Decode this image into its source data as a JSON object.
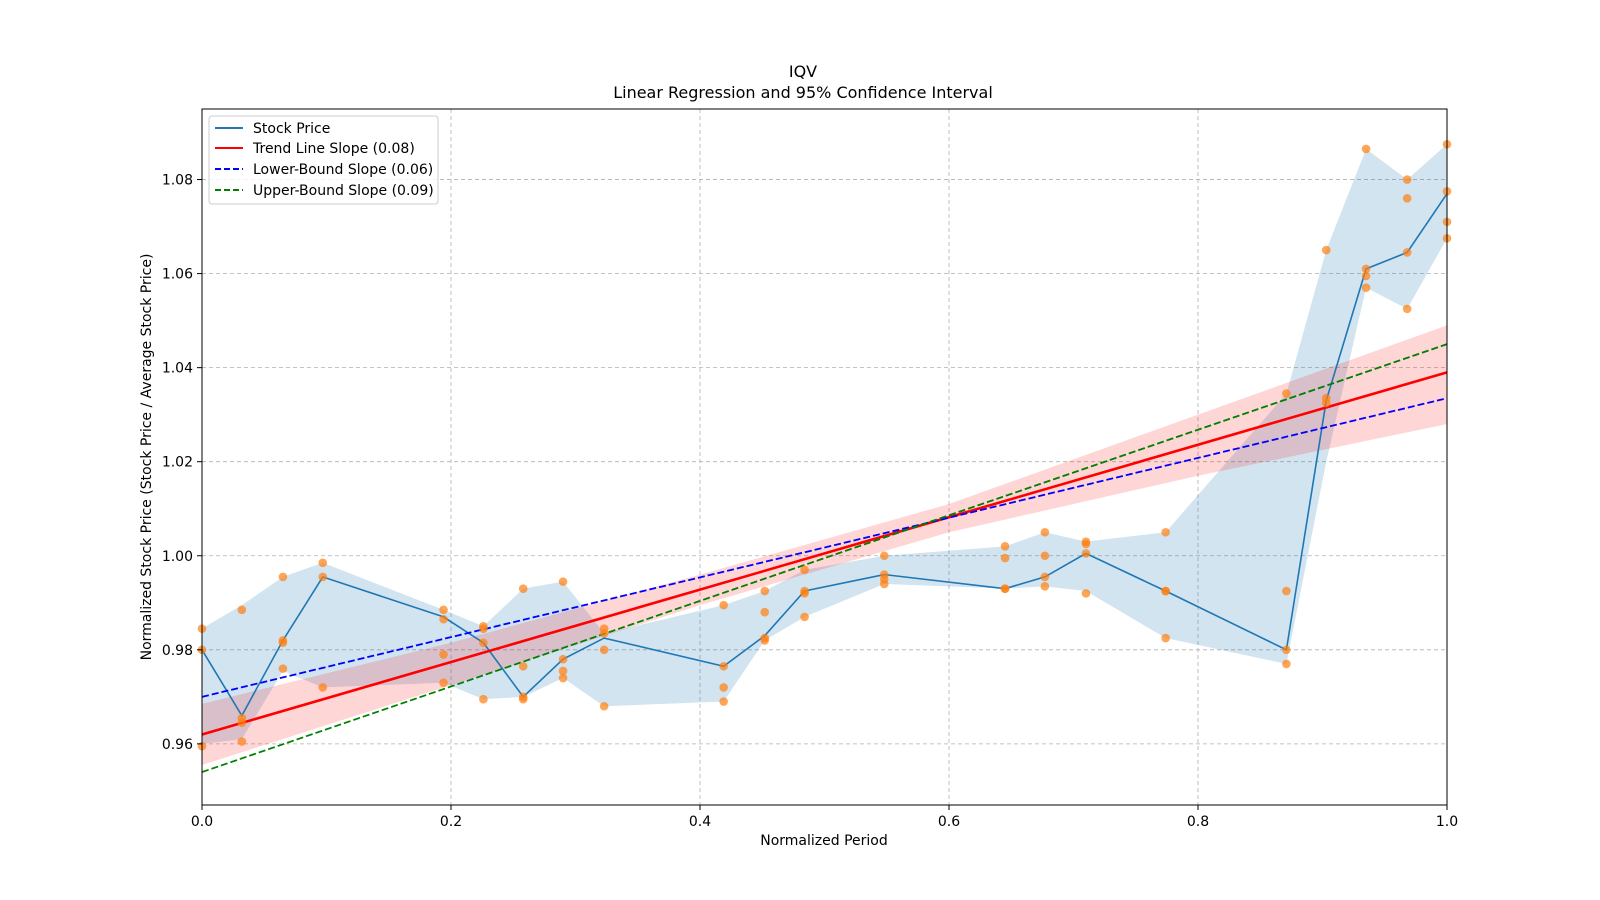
{
  "chart_data": {
    "type": "line",
    "title": "IQV",
    "subtitle": "Linear Regression and 95% Confidence Interval",
    "xlabel": "Normalized Period",
    "ylabel": "Normalized Stock Price (Stock Price / Average Stock Price)",
    "xlim": [
      0.0,
      1.0
    ],
    "ylim": [
      0.947,
      1.095
    ],
    "xticks": [
      0.0,
      0.2,
      0.4,
      0.6,
      0.8,
      1.0
    ],
    "xtick_labels": [
      "0.0",
      "0.2",
      "0.4",
      "0.6",
      "0.8",
      "1.0"
    ],
    "yticks": [
      0.96,
      0.98,
      1.0,
      1.02,
      1.04,
      1.06,
      1.08
    ],
    "ytick_labels": [
      "0.96",
      "0.98",
      "1.00",
      "1.02",
      "1.04",
      "1.06",
      "1.08"
    ],
    "grid": true,
    "legend": {
      "position": "top-left",
      "entries": [
        {
          "label": "Stock Price",
          "color": "#1f77b4",
          "style": "solid"
        },
        {
          "label": "Trend Line Slope (0.08)",
          "color": "#ff0000",
          "style": "solid"
        },
        {
          "label": "Lower-Bound Slope (0.06)",
          "color": "#0000ff",
          "style": "dashed"
        },
        {
          "label": "Upper-Bound Slope (0.09)",
          "color": "#008000",
          "style": "dashed"
        }
      ]
    },
    "stock_price": {
      "x": [
        0.0,
        0.032,
        0.065,
        0.097,
        0.194,
        0.226,
        0.258,
        0.29,
        0.323,
        0.419,
        0.452,
        0.484,
        0.548,
        0.645,
        0.677,
        0.71,
        0.774,
        0.871,
        0.903,
        0.935,
        0.968,
        1.0
      ],
      "y": [
        0.98,
        0.966,
        0.982,
        0.9955,
        0.987,
        0.9815,
        0.97,
        0.978,
        0.9825,
        0.9765,
        0.983,
        0.9925,
        0.996,
        0.993,
        0.9955,
        1.0005,
        0.9925,
        0.98,
        1.033,
        1.061,
        1.0645,
        1.077
      ],
      "band_low": [
        0.96,
        0.961,
        0.9755,
        0.972,
        0.973,
        0.9695,
        0.97,
        0.974,
        0.968,
        0.969,
        0.982,
        0.987,
        0.994,
        0.993,
        0.9935,
        0.9925,
        0.9825,
        0.977,
        1.02,
        1.057,
        1.0525,
        1.0675
      ],
      "band_high": [
        0.9845,
        0.9895,
        0.9955,
        0.9985,
        0.9885,
        0.985,
        0.993,
        0.9945,
        0.9835,
        0.9895,
        0.9925,
        0.997,
        1.0,
        1.002,
        1.005,
        1.003,
        1.005,
        1.0345,
        1.065,
        1.0865,
        1.08,
        1.0875
      ],
      "color": "#1f77b4",
      "band_color": "#1f77b4"
    },
    "scatter": {
      "x": [
        0.0,
        0.0,
        0.0,
        0.032,
        0.032,
        0.032,
        0.032,
        0.065,
        0.065,
        0.065,
        0.065,
        0.097,
        0.097,
        0.097,
        0.194,
        0.194,
        0.194,
        0.194,
        0.226,
        0.226,
        0.226,
        0.226,
        0.258,
        0.258,
        0.258,
        0.258,
        0.29,
        0.29,
        0.29,
        0.29,
        0.323,
        0.323,
        0.323,
        0.323,
        0.419,
        0.419,
        0.419,
        0.419,
        0.452,
        0.452,
        0.452,
        0.452,
        0.484,
        0.484,
        0.484,
        0.484,
        0.548,
        0.548,
        0.548,
        0.548,
        0.645,
        0.645,
        0.645,
        0.645,
        0.677,
        0.677,
        0.677,
        0.677,
        0.71,
        0.71,
        0.71,
        0.71,
        0.774,
        0.774,
        0.774,
        0.774,
        0.871,
        0.871,
        0.871,
        0.871,
        0.903,
        0.903,
        0.903,
        0.935,
        0.935,
        0.935,
        0.935,
        0.968,
        0.968,
        0.968,
        0.968,
        1.0,
        1.0,
        1.0,
        1.0
      ],
      "y": [
        0.9845,
        0.98,
        0.9595,
        0.9885,
        0.9655,
        0.9645,
        0.9605,
        0.9955,
        0.982,
        0.9815,
        0.976,
        0.9985,
        0.9955,
        0.972,
        0.9885,
        0.9865,
        0.979,
        0.973,
        0.985,
        0.9845,
        0.9815,
        0.9695,
        0.993,
        0.9765,
        0.97,
        0.9695,
        0.9945,
        0.978,
        0.9755,
        0.974,
        0.9845,
        0.9835,
        0.98,
        0.968,
        0.9895,
        0.9765,
        0.972,
        0.969,
        0.9925,
        0.988,
        0.9825,
        0.982,
        0.997,
        0.9925,
        0.992,
        0.987,
        1.0,
        0.996,
        0.995,
        0.994,
        1.002,
        0.9995,
        0.993,
        0.993,
        1.005,
        1.0,
        0.9955,
        0.9935,
        1.003,
        1.0025,
        1.0005,
        0.992,
        1.005,
        0.9925,
        0.9925,
        0.9825,
        1.0345,
        0.9925,
        0.98,
        0.977,
        1.065,
        1.0335,
        1.0325,
        1.0865,
        1.061,
        1.0595,
        1.057,
        1.08,
        1.076,
        1.0645,
        1.0525,
        1.0875,
        1.0775,
        1.071,
        1.0675
      ],
      "color": "#ff7f0e"
    },
    "trend_line": {
      "x": [
        0.0,
        1.0
      ],
      "y": [
        0.962,
        1.039
      ],
      "color": "#ff0000"
    },
    "trend_band": {
      "x": [
        0.0,
        0.2,
        0.4,
        0.6,
        0.8,
        1.0
      ],
      "low": [
        0.9555,
        0.9725,
        0.9895,
        1.005,
        1.017,
        1.028
      ],
      "high": [
        0.9685,
        0.9815,
        0.996,
        1.011,
        1.03,
        1.049
      ],
      "color": "#ff0000"
    },
    "lower_bound_line": {
      "x": [
        0.0,
        1.0
      ],
      "y": [
        0.97,
        1.0335
      ],
      "color": "#0000ff"
    },
    "upper_bound_line": {
      "x": [
        0.0,
        1.0
      ],
      "y": [
        0.954,
        1.045
      ],
      "color": "#008000"
    }
  }
}
